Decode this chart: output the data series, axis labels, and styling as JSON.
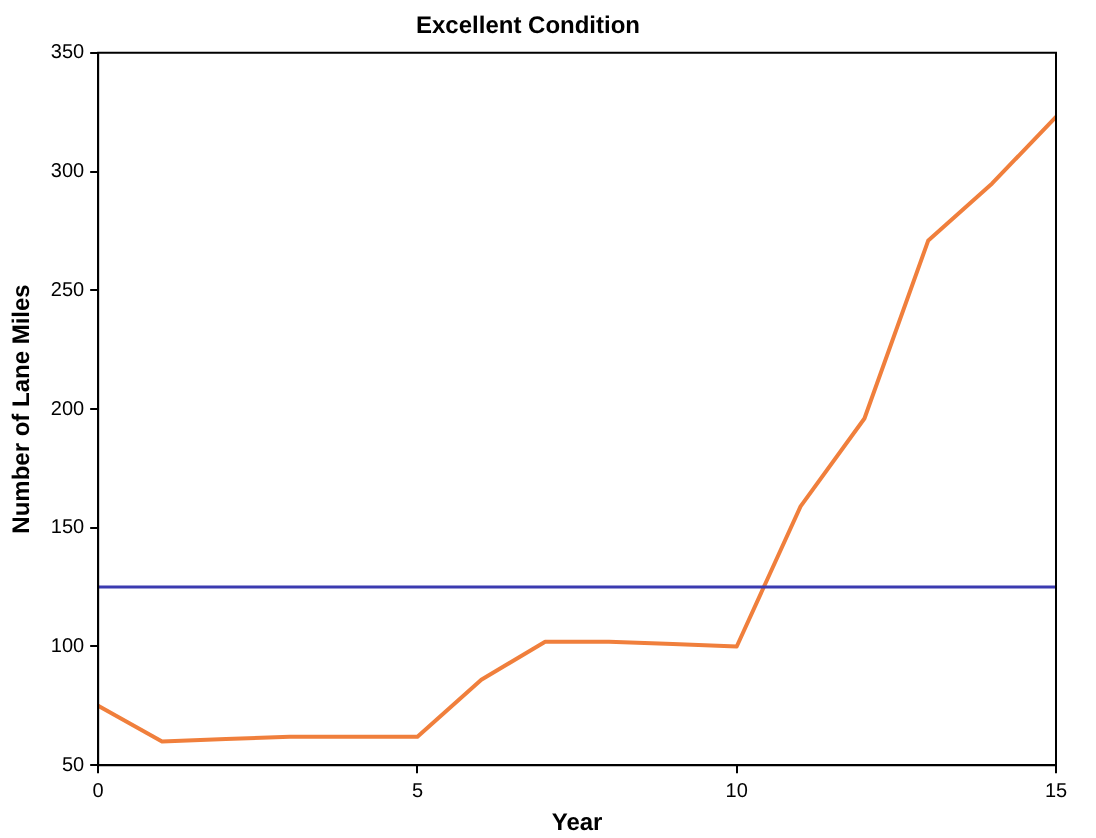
{
  "chart_data": {
    "type": "line",
    "title": "Excellent Condition",
    "xlabel": "Year",
    "ylabel": "Number of Lane Miles",
    "x": [
      0,
      1,
      2,
      3,
      4,
      5,
      6,
      7,
      8,
      9,
      10,
      11,
      12,
      13,
      14,
      15
    ],
    "series": [
      {
        "color": "#f07f3c",
        "values": [
          75,
          60,
          61,
          62,
          62,
          62,
          86,
          102,
          102,
          101,
          100,
          159,
          196,
          271,
          295,
          323
        ]
      }
    ],
    "xlim": [
      0,
      15
    ],
    "xticks": [
      0,
      5,
      10,
      15
    ],
    "ylim": [
      50,
      350
    ],
    "yticks": [
      50,
      100,
      150,
      200,
      250,
      300,
      350
    ],
    "ref_lines": [
      {
        "axis": "y",
        "value": 125,
        "color": "#3b3bb0"
      }
    ],
    "grid": false,
    "legend": false,
    "marker": "none",
    "line_style": "solid"
  }
}
